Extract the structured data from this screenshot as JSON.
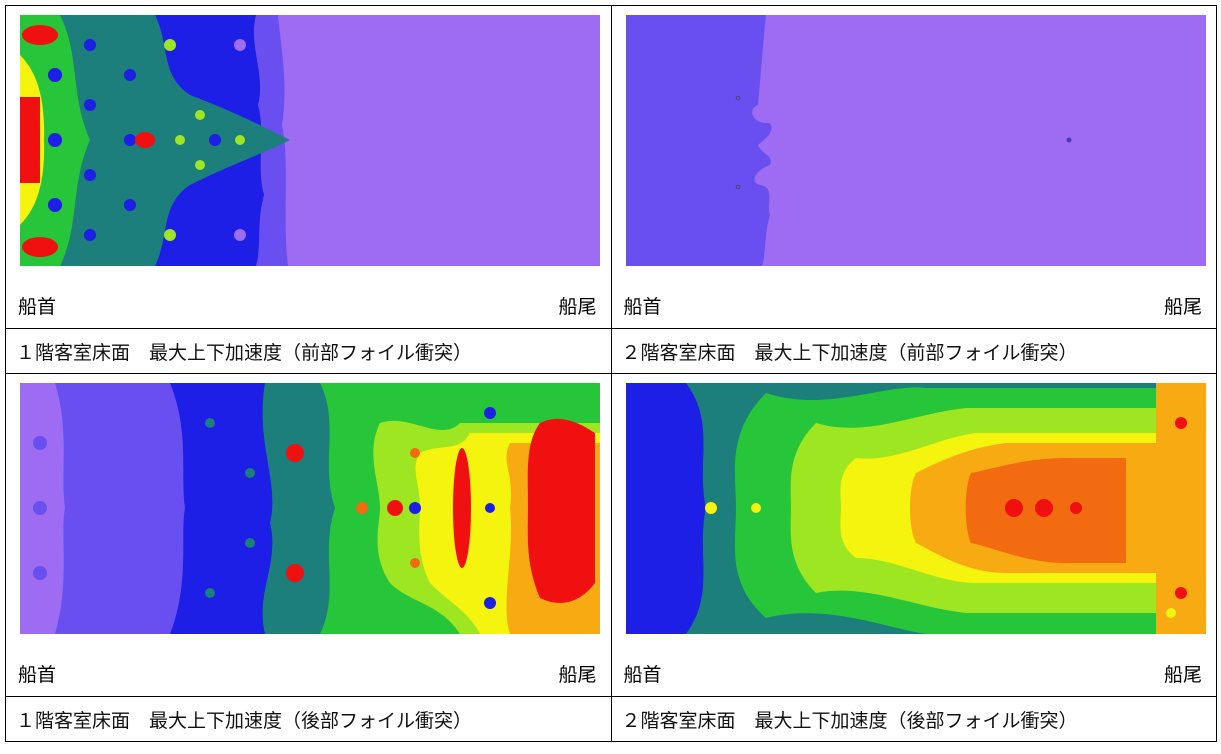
{
  "panels": [
    {
      "bow_label": "船首",
      "stern_label": "船尾",
      "caption": "１階客室床面　最大上下加速度（前部フォイル衝突）"
    },
    {
      "bow_label": "船首",
      "stern_label": "船尾",
      "caption": "２階客室床面　最大上下加速度（前部フォイル衝突）"
    },
    {
      "bow_label": "船首",
      "stern_label": "船尾",
      "caption": "１階客室床面　最大上下加速度（後部フォイル衝突）"
    },
    {
      "bow_label": "船首",
      "stern_label": "船尾",
      "caption": "２階客室床面　最大上下加速度（後部フォイル衝突）"
    }
  ],
  "contour_colors": [
    "#9d6cf2",
    "#6a4ff0",
    "#1d1ee6",
    "#1c7f7c",
    "#27c53a",
    "#9de621",
    "#f4f40e",
    "#f8aa12",
    "#f26b10",
    "#f01010"
  ]
}
